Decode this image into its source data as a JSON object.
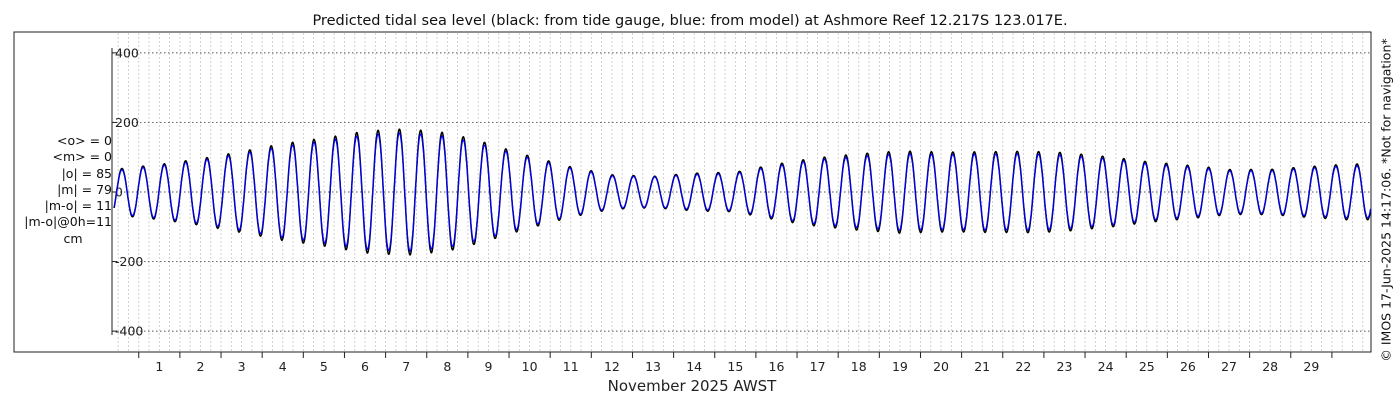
{
  "chart_data": {
    "type": "line",
    "title": "Predicted tidal sea level (black: from tide gauge, blue: from model) at Ashmore Reef 12.217S 123.017E.",
    "xlabel": "November 2025 AWST",
    "ylabel": "",
    "xlim": [
      0.35,
      30.95
    ],
    "ylim": [
      -460,
      460
    ],
    "yticks": [
      -400,
      -200,
      0,
      200,
      400
    ],
    "xticks": [
      1,
      2,
      3,
      4,
      5,
      6,
      7,
      8,
      9,
      10,
      11,
      12,
      13,
      14,
      15,
      16,
      17,
      18,
      19,
      20,
      21,
      22,
      23,
      24,
      25,
      26,
      27,
      28,
      29
    ],
    "grid": true,
    "tide_periods_days": [
      0.5175,
      0.5
    ],
    "series": [
      {
        "name": "from tide gauge",
        "color": "#000000",
        "line_width": 1.5,
        "days": [
          0.5,
          1.5,
          2.5,
          3.5,
          4.5,
          5.5,
          6.5,
          7.5,
          8.5,
          9.5,
          10.5,
          11.5,
          12.5,
          13.5,
          14.5,
          15.5,
          16.5,
          17.5,
          18.5,
          19.5,
          20.5,
          21.5,
          22.5,
          23.5,
          24.5,
          25.5,
          26.5,
          27.5,
          28.5,
          29.5,
          30.5
        ],
        "amp_a": [
          55,
          70,
          95,
          125,
          155,
          175,
          190,
          190,
          175,
          140,
          100,
          65,
          40,
          40,
          45,
          50,
          75,
          100,
          120,
          135,
          140,
          140,
          135,
          120,
          100,
          80,
          65,
          55,
          55,
          65,
          75
        ],
        "amp_b": [
          15,
          20,
          20,
          20,
          20,
          20,
          15,
          10,
          10,
          5,
          10,
          10,
          10,
          5,
          10,
          10,
          15,
          20,
          20,
          20,
          25,
          25,
          25,
          20,
          20,
          15,
          15,
          10,
          10,
          10,
          10
        ]
      },
      {
        "name": "from model",
        "color": "#0000ff",
        "line_width": 1.2,
        "days": [
          0.5,
          1.5,
          2.5,
          3.5,
          4.5,
          5.5,
          6.5,
          7.5,
          8.5,
          9.5,
          10.5,
          11.5,
          12.5,
          13.5,
          14.5,
          15.5,
          16.5,
          17.5,
          18.5,
          19.5,
          20.5,
          21.5,
          22.5,
          23.5,
          24.5,
          25.5,
          26.5,
          27.5,
          28.5,
          29.5,
          30.5
        ],
        "amp_a": [
          52,
          66,
          90,
          118,
          146,
          165,
          178,
          178,
          164,
          132,
          94,
          62,
          38,
          38,
          42,
          47,
          70,
          94,
          112,
          126,
          131,
          131,
          126,
          112,
          94,
          75,
          61,
          52,
          52,
          61,
          70
        ],
        "amp_b": [
          14,
          19,
          19,
          19,
          19,
          19,
          14,
          9,
          9,
          5,
          9,
          9,
          9,
          5,
          9,
          9,
          14,
          19,
          19,
          19,
          23,
          23,
          23,
          19,
          19,
          14,
          14,
          9,
          9,
          9,
          9
        ]
      }
    ]
  },
  "stats": {
    "mean_obs": "<o> = 0",
    "mean_model": "<m> = 0",
    "abs_obs": "|o| = 85",
    "abs_model": "|m| = 79",
    "abs_diff": "|m-o| = 11",
    "abs_diff_0h": "|m-o|@0h=11",
    "unit": "cm"
  },
  "footer": {
    "copyright": "© IMOS 17-Jun-2025 14:17:06.  *Not for navigation*"
  },
  "colors": {
    "axis": "#222222",
    "grid_h": "#555555",
    "grid_v": "#c8c8c8"
  }
}
